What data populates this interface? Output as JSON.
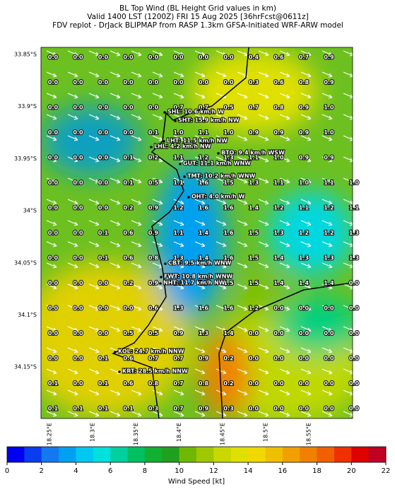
{
  "header": {
    "lines": [
      "BL Top Wind (BL Height Grid values in km)",
      "Valid 1400 LST (1200Z) FRI 15 Aug 2025 [36hrFcst@0611z]",
      "FDV replot - DrJack BLIPMAP from RASP 1.3km GFSA-Initiated WRF-ARW model"
    ]
  },
  "map": {
    "lat_labels": [
      "33.85°S",
      "33.9°S",
      "33.95°S",
      "34°S",
      "34.05°S",
      "34.1°S",
      "34.15°S"
    ],
    "lon_labels": [
      "18.25°E",
      "18.3°E",
      "18.35°E",
      "18.4°E",
      "18.45°E",
      "18.5°E",
      "18.55°E"
    ],
    "grid": [
      [
        "0.0",
        "0.0",
        "0.0",
        "0.0",
        "0.0",
        "0.0",
        "0.0",
        "0.0",
        "0.4",
        "0.6",
        "0.7",
        "0.9",
        null
      ],
      [
        "0.0",
        "0.0",
        "0.0",
        "0.0",
        "0.0",
        "0.0",
        "0.0",
        "0.0",
        "0.3",
        "0.6",
        "0.8",
        "0.9",
        null
      ],
      [
        "0.0",
        "0.0",
        "0.0",
        "0.0",
        "0.0",
        "0.7",
        "0.7",
        "0.5",
        "0.7",
        "0.8",
        "0.9",
        "1.0",
        null
      ],
      [
        "0.0",
        "0.0",
        "0.0",
        "0.0",
        "0.1",
        "1.0",
        "1.1",
        "1.0",
        "0.9",
        "0.9",
        "0.9",
        "1.0",
        null
      ],
      [
        "0.0",
        "0.0",
        "0.0",
        "0.1",
        "0.2",
        "1.1",
        "1.2",
        "1.3",
        "1.1",
        "1.0",
        "0.9",
        "0.9",
        null
      ],
      [
        "0.0",
        "0.0",
        "0.0",
        "0.1",
        "0.5",
        "1.1",
        "1.6",
        "1.5",
        "1.3",
        "1.1",
        "1.0",
        "1.1",
        "1.0"
      ],
      [
        "0.0",
        "0.0",
        "0.0",
        "0.2",
        "0.9",
        "1.2",
        "1.6",
        "1.6",
        "1.4",
        "1.2",
        "1.1",
        "1.2",
        "1.1"
      ],
      [
        "0.0",
        "0.0",
        "0.1",
        "0.6",
        "0.9",
        "1.1",
        "1.4",
        "1.6",
        "1.5",
        "1.3",
        "1.2",
        "1.2",
        "1.3"
      ],
      [
        "0.0",
        "0.0",
        "0.1",
        "0.6",
        "0.8",
        "1.3",
        "1.4",
        "1.6",
        "1.5",
        "1.4",
        "1.3",
        "1.3",
        "1.3"
      ],
      [
        "0.0",
        "0.0",
        "0.0",
        "0.2",
        "0.9",
        "1.2",
        "1.5",
        "1.5",
        "1.5",
        "1.4",
        "1.4",
        "1.4",
        "0.0"
      ],
      [
        "0.0",
        "0.0",
        "0.0",
        "0.0",
        "0.6",
        "1.3",
        "1.6",
        "1.6",
        "1.2",
        "0.0",
        "0.0",
        "0.0",
        "0.0"
      ],
      [
        "0.0",
        "0.0",
        "0.0",
        "0.5",
        "0.5",
        "0.9",
        "1.3",
        "1.4",
        "0.0",
        "0.0",
        "0.0",
        "0.0",
        "0.0"
      ],
      [
        "0.0",
        "0.0",
        "0.1",
        "0.6",
        "0.7",
        "0.7",
        "0.9",
        "0.2",
        "0.0",
        "0.0",
        "0.0",
        "0.0",
        "0.0"
      ],
      [
        "0.1",
        "0.0",
        "0.1",
        "0.6",
        "0.8",
        "0.7",
        "0.8",
        "0.2",
        "0.0",
        "0.0",
        "0.0",
        "0.0",
        "0.0"
      ],
      [
        "0.1",
        "0.1",
        "0.1",
        "0.1",
        "0.3",
        "0.7",
        "0.9",
        "0.3",
        "0.0",
        "0.0",
        "0.0",
        "0.0",
        "0.0"
      ]
    ],
    "stations": [
      "SHL: 10.6 km/h W",
      "SHT: 15.9 km/h NW",
      "LHT: 11.5 km/h NW",
      "LHL: 4.2 km/h NW",
      "BTO: 9.4 km/h WSW",
      "GUT: 11.1 km/h WNW",
      "TMT: 10.2 km/h WNW",
      "OHT: 4.0 km/h W",
      "CBT: 9.5 km/h WNW",
      "FWT: 10.8 km/h WNW",
      "NHT: 11.7 km/h NW",
      "KOL: 24.7 km/h NNW",
      "KRT: 28.5 km/h NNW"
    ]
  },
  "colorbar": {
    "label": "Wind Speed [kt]",
    "range": [
      0,
      22
    ],
    "ticks": [
      0,
      2,
      4,
      6,
      8,
      10,
      12,
      14,
      16,
      18,
      20,
      22
    ],
    "colors": [
      "#0000f0",
      "#0a3cf0",
      "#1478f0",
      "#00a0f0",
      "#00c8f0",
      "#00e0dc",
      "#00d0a0",
      "#00c060",
      "#10b030",
      "#20a020",
      "#70b800",
      "#a0c800",
      "#c8d800",
      "#e0e000",
      "#f0d800",
      "#f0c000",
      "#f0a000",
      "#f08000",
      "#f06000",
      "#f03000",
      "#e00000",
      "#c00020"
    ]
  }
}
